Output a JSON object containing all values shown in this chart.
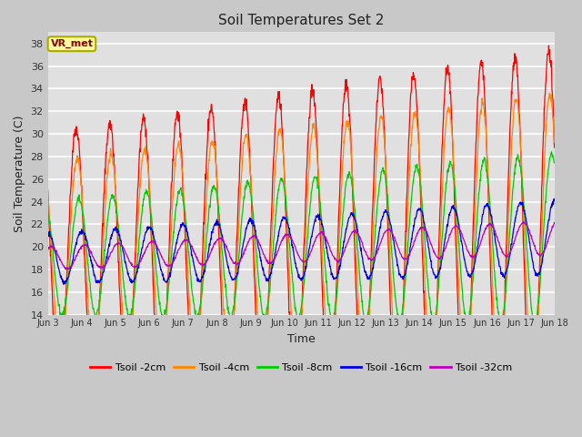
{
  "title": "Soil Temperatures Set 2",
  "xlabel": "Time",
  "ylabel": "Soil Temperature (C)",
  "ylim": [
    14,
    39
  ],
  "yticks": [
    14,
    16,
    18,
    20,
    22,
    24,
    26,
    28,
    30,
    32,
    34,
    36,
    38
  ],
  "fig_bg": "#c8c8c8",
  "plot_bg": "#e0e0e0",
  "colors": {
    "Tsoil -2cm": "#ff0000",
    "Tsoil -4cm": "#ff8800",
    "Tsoil -8cm": "#00cc00",
    "Tsoil -16cm": "#0000dd",
    "Tsoil -32cm": "#bb00bb"
  },
  "annotation_text": "VR_met",
  "annotation_bg": "#ffff99",
  "annotation_border": "#aaaa00",
  "n_days": 15,
  "pts_per_day": 96,
  "base_temp": 19.0,
  "trend_slope": 0.12,
  "amplitudes": [
    11.0,
    8.5,
    5.0,
    2.2,
    1.0
  ],
  "phase_lags_hours": [
    0.0,
    0.8,
    2.0,
    4.0,
    6.0
  ],
  "noise_levels": [
    0.3,
    0.2,
    0.15,
    0.1,
    0.05
  ],
  "amp_growth": 0.5
}
